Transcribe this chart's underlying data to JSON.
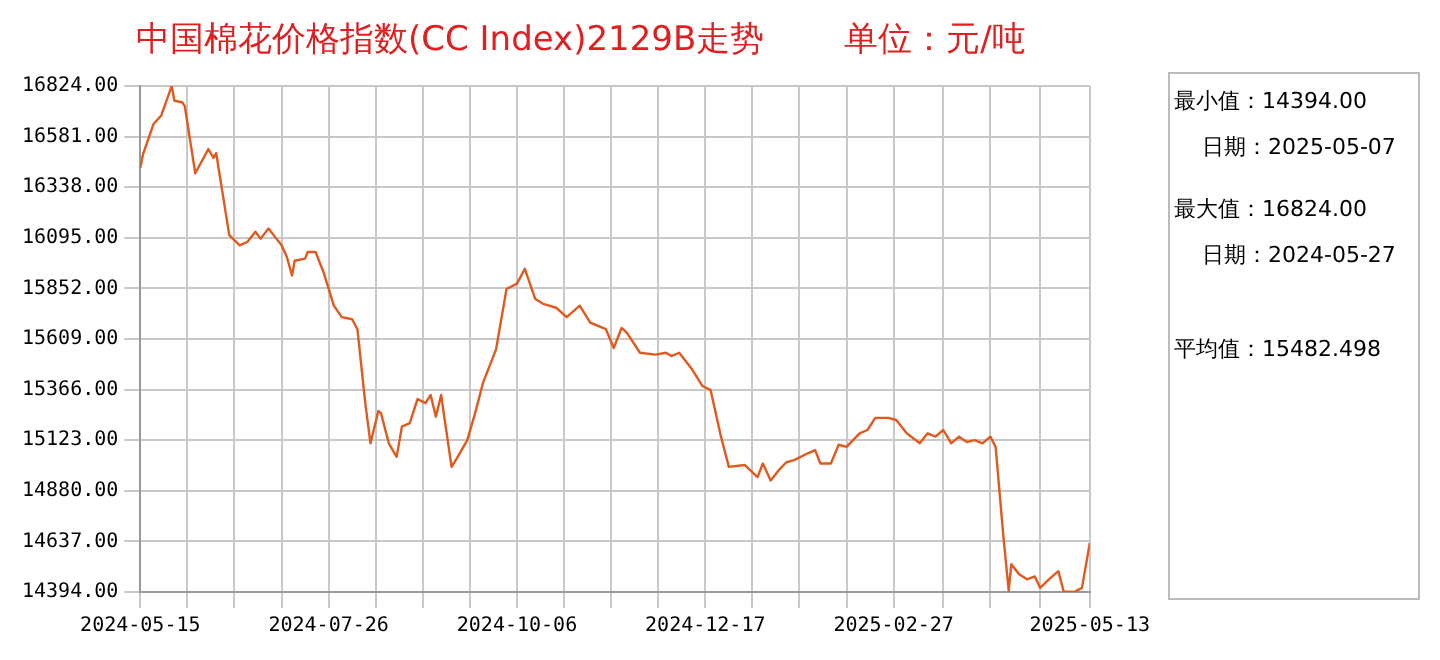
{
  "chart_data": {
    "type": "line",
    "title": "中国棉花价格指数(CC Index)2129B走势",
    "subtitle": "单位：元/吨",
    "annotations": [
      "最小值：14394.00",
      "日期：2025-05-07",
      "最大值：16824.00",
      "日期：2024-05-27",
      "平均值：15482.498"
    ],
    "x": [
      "2024-05-15",
      "2024-05-16",
      "2024-05-20",
      "2024-05-23",
      "2024-05-27",
      "2024-05-28",
      "2024-05-31",
      "2024-06-01",
      "2024-06-05",
      "2024-06-10",
      "2024-06-12",
      "2024-06-13",
      "2024-06-18",
      "2024-06-22",
      "2024-06-25",
      "2024-06-28",
      "2024-06-30",
      "2024-07-03",
      "2024-07-06",
      "2024-07-08",
      "2024-07-10",
      "2024-07-12",
      "2024-07-13",
      "2024-07-17",
      "2024-07-18",
      "2024-07-21",
      "2024-07-24",
      "2024-07-28",
      "2024-07-31",
      "2024-08-04",
      "2024-08-06",
      "2024-08-09",
      "2024-08-11",
      "2024-08-14",
      "2024-08-15",
      "2024-08-18",
      "2024-08-21",
      "2024-08-23",
      "2024-08-26",
      "2024-08-29",
      "2024-09-01",
      "2024-09-03",
      "2024-09-05",
      "2024-09-07",
      "2024-09-11",
      "2024-09-13",
      "2024-09-17",
      "2024-09-20",
      "2024-09-23",
      "2024-09-28",
      "2024-10-02",
      "2024-10-06",
      "2024-10-09",
      "2024-10-13",
      "2024-10-16",
      "2024-10-21",
      "2024-10-25",
      "2024-10-30",
      "2024-11-03",
      "2024-11-09",
      "2024-11-12",
      "2024-11-15",
      "2024-11-17",
      "2024-11-22",
      "2024-11-28",
      "2024-12-02",
      "2024-12-04",
      "2024-12-07",
      "2024-12-12",
      "2024-12-16",
      "2024-12-19",
      "2024-12-23",
      "2024-12-26",
      "2025-01-01",
      "2025-01-06",
      "2025-01-08",
      "2025-01-11",
      "2025-01-14",
      "2025-01-17",
      "2025-01-20",
      "2025-01-25",
      "2025-01-28",
      "2025-01-30",
      "2025-02-03",
      "2025-02-06",
      "2025-02-09",
      "2025-02-14",
      "2025-02-17",
      "2025-02-20",
      "2025-02-25",
      "2025-02-28",
      "2025-03-04",
      "2025-03-09",
      "2025-03-12",
      "2025-03-15",
      "2025-03-18",
      "2025-03-21",
      "2025-03-24",
      "2025-03-27",
      "2025-03-30",
      "2025-04-02",
      "2025-04-05",
      "2025-04-07",
      "2025-04-10",
      "2025-04-12",
      "2025-04-13",
      "2025-04-16",
      "2025-04-19",
      "2025-04-22",
      "2025-04-24",
      "2025-04-28",
      "2025-05-01",
      "2025-05-03",
      "2025-05-07",
      "2025-05-10",
      "2025-05-13"
    ],
    "series": [
      {
        "color": "#e05a1e",
        "values": [
          16430,
          16495,
          16640,
          16682,
          16824,
          16753,
          16746,
          16727,
          16405,
          16521,
          16479,
          16502,
          16108,
          16059,
          16076,
          16124,
          16091,
          16140,
          16091,
          16059,
          16004,
          15914,
          15985,
          15995,
          16027,
          16027,
          15931,
          15769,
          15714,
          15704,
          15656,
          15301,
          15108,
          15263,
          15253,
          15108,
          15043,
          15188,
          15205,
          15321,
          15301,
          15340,
          15236,
          15340,
          14995,
          15036,
          15123,
          15253,
          15398,
          15559,
          15849,
          15875,
          15946,
          15801,
          15778,
          15759,
          15714,
          15769,
          15688,
          15656,
          15566,
          15662,
          15640,
          15543,
          15534,
          15543,
          15527,
          15543,
          15462,
          15382,
          15365,
          15140,
          14995,
          15004,
          14946,
          15011,
          14930,
          14978,
          15017,
          15027,
          15059,
          15075,
          15011,
          15011,
          15101,
          15091,
          15156,
          15172,
          15230,
          15230,
          15220,
          15156,
          15108,
          15156,
          15140,
          15172,
          15108,
          15140,
          15114,
          15123,
          15108,
          15140,
          15091,
          14656,
          14400,
          14527,
          14479,
          14455,
          14469,
          14414,
          14462,
          14494,
          14397,
          14394,
          14414,
          14629
        ]
      }
    ],
    "xlim": [
      "2024-05-15",
      "2025-05-13"
    ],
    "xticks": [
      {
        "value": "2024-05-15",
        "label": "2024-05-15"
      },
      {
        "value": "2024-06-02",
        "label": null
      },
      {
        "value": "2024-06-20",
        "label": null
      },
      {
        "value": "2024-07-08",
        "label": null
      },
      {
        "value": "2024-07-26",
        "label": "2024-07-26"
      },
      {
        "value": "2024-08-13",
        "label": null
      },
      {
        "value": "2024-08-31",
        "label": null
      },
      {
        "value": "2024-09-18",
        "label": null
      },
      {
        "value": "2024-10-06",
        "label": "2024-10-06"
      },
      {
        "value": "2024-10-24",
        "label": null
      },
      {
        "value": "2024-11-11",
        "label": null
      },
      {
        "value": "2024-11-29",
        "label": null
      },
      {
        "value": "2024-12-17",
        "label": "2024-12-17"
      },
      {
        "value": "2025-01-04",
        "label": null
      },
      {
        "value": "2025-01-22",
        "label": null
      },
      {
        "value": "2025-02-09",
        "label": null
      },
      {
        "value": "2025-02-27",
        "label": "2025-02-27"
      },
      {
        "value": "2025-03-18",
        "label": null
      },
      {
        "value": "2025-04-05",
        "label": null
      },
      {
        "value": "2025-04-24",
        "label": null
      },
      {
        "value": "2025-05-13",
        "label": "2025-05-13"
      }
    ],
    "ylim": [
      14394,
      16824
    ],
    "yticks": [
      {
        "value": 14394,
        "label": "14394.00"
      },
      {
        "value": 14637,
        "label": "14637.00"
      },
      {
        "value": 14880,
        "label": "14880.00"
      },
      {
        "value": 15123,
        "label": "15123.00"
      },
      {
        "value": 15366,
        "label": "15366.00"
      },
      {
        "value": 15609,
        "label": "15609.00"
      },
      {
        "value": 15852,
        "label": "15852.00"
      },
      {
        "value": 16095,
        "label": "16095.00"
      },
      {
        "value": 16338,
        "label": "16338.00"
      },
      {
        "value": 16581,
        "label": "16581.00"
      },
      {
        "value": 16824,
        "label": "16824.00"
      }
    ],
    "grid": true,
    "legend": false,
    "marker": "none",
    "line_style": "solid"
  }
}
